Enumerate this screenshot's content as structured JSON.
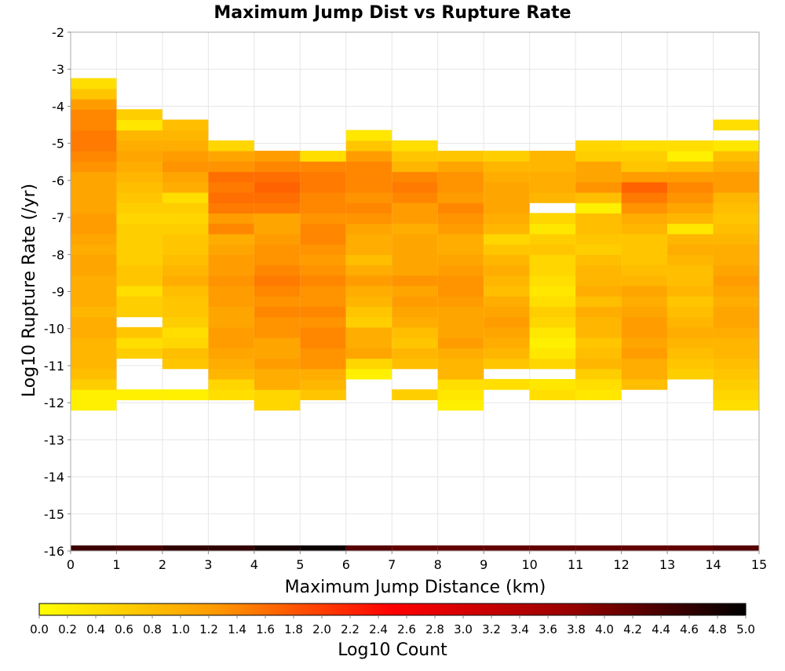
{
  "chart_data": {
    "type": "heatmap",
    "title": "Maximum Jump Dist vs Rupture Rate",
    "xlabel": "Maximum Jump Distance (km)",
    "ylabel": "Log10 Rupture Rate (/yr)",
    "xlim": [
      0,
      15
    ],
    "ylim": [
      -16,
      -2
    ],
    "x_ticks": [
      "0",
      "1",
      "2",
      "3",
      "4",
      "5",
      "6",
      "7",
      "8",
      "9",
      "10",
      "11",
      "12",
      "13",
      "14",
      "15"
    ],
    "y_ticks": [
      "-16",
      "-15",
      "-14",
      "-13",
      "-12",
      "-11",
      "-10",
      "-9",
      "-8",
      "-7",
      "-6",
      "-5",
      "-4",
      "-3",
      "-2"
    ],
    "grid": true,
    "x_bins": [
      0,
      1,
      2,
      3,
      4,
      5,
      6,
      7,
      8,
      9,
      10,
      11,
      12,
      13,
      14
    ],
    "x_bin_width": 1,
    "y_bin_width": 0.28,
    "y_bin_start": -12.2,
    "columns": [
      [
        0.2,
        0.2,
        0.6,
        0.8,
        0.9,
        0.9,
        0.9,
        1.0,
        1.0,
        0.9,
        1.0,
        1.0,
        1.0,
        1.1,
        1.1,
        1.0,
        1.1,
        1.2,
        1.2,
        1.1,
        1.1,
        1.1,
        1.1,
        1.3,
        1.4,
        1.5,
        1.5,
        1.4,
        1.4,
        1.2,
        0.7,
        0.4
      ],
      [
        null,
        0.2,
        null,
        null,
        null,
        0.6,
        0.4,
        0.7,
        null,
        0.6,
        0.6,
        0.4,
        0.7,
        0.7,
        0.6,
        0.6,
        0.6,
        0.6,
        0.5,
        0.6,
        0.7,
        0.8,
        0.9,
        1.0,
        1.1,
        1.0,
        0.9,
        0.3,
        0.6,
        null,
        null,
        null
      ],
      [
        null,
        0.2,
        null,
        null,
        0.7,
        0.8,
        0.5,
        0.4,
        0.6,
        0.7,
        0.7,
        0.8,
        1.0,
        0.9,
        0.8,
        0.7,
        0.7,
        0.6,
        0.5,
        0.6,
        0.4,
        1.0,
        1.1,
        1.3,
        1.2,
        1.0,
        0.9,
        0.8,
        null,
        null,
        null,
        null
      ],
      [
        null,
        0.4,
        0.5,
        0.9,
        1.0,
        1.1,
        1.2,
        1.2,
        1.1,
        1.1,
        1.2,
        1.2,
        1.3,
        1.2,
        1.2,
        1.1,
        1.0,
        1.4,
        1.2,
        1.5,
        1.6,
        1.5,
        1.6,
        1.3,
        1.1,
        0.5,
        null,
        null,
        null,
        null,
        null,
        null
      ],
      [
        0.5,
        0.5,
        1.0,
        1.0,
        1.2,
        1.1,
        1.1,
        1.3,
        1.3,
        1.4,
        1.3,
        1.4,
        1.5,
        1.4,
        1.3,
        1.3,
        1.2,
        1.1,
        1.1,
        1.5,
        1.6,
        1.7,
        1.6,
        1.4,
        1.2,
        null,
        null,
        null,
        null,
        null,
        null,
        null
      ],
      [
        null,
        0.7,
        0.9,
        1.0,
        1.3,
        1.3,
        1.4,
        1.4,
        1.3,
        1.4,
        1.3,
        1.3,
        1.4,
        1.3,
        1.2,
        1.3,
        1.4,
        1.4,
        1.3,
        1.4,
        1.4,
        1.5,
        1.5,
        1.4,
        0.4,
        null,
        null,
        null,
        null,
        null,
        null,
        null
      ],
      [
        null,
        null,
        null,
        0.2,
        0.5,
        1.1,
        1.0,
        1.0,
        0.6,
        0.7,
        0.9,
        1.0,
        1.2,
        1.0,
        0.8,
        1.0,
        1.0,
        1.1,
        1.3,
        1.4,
        1.3,
        1.4,
        1.4,
        1.4,
        1.2,
        0.7,
        0.3,
        null,
        null,
        null,
        null,
        null
      ],
      [
        null,
        0.6,
        null,
        null,
        0.8,
        0.9,
        0.7,
        0.8,
        1.0,
        1.1,
        1.2,
        1.1,
        1.3,
        1.1,
        1.1,
        1.1,
        1.1,
        1.0,
        1.2,
        1.2,
        1.4,
        1.5,
        1.4,
        0.9,
        0.7,
        0.4,
        null,
        null,
        null,
        null,
        null,
        null
      ],
      [
        0.2,
        0.3,
        0.4,
        0.9,
        0.9,
        1.0,
        1.2,
        1.1,
        1.1,
        1.1,
        1.2,
        1.3,
        1.3,
        1.2,
        1.1,
        1.0,
        1.0,
        1.2,
        1.3,
        1.4,
        1.2,
        1.3,
        1.3,
        1.1,
        0.7,
        null,
        null,
        null,
        null,
        null,
        null,
        null
      ],
      [
        null,
        null,
        0.4,
        null,
        0.7,
        0.9,
        1.0,
        1.1,
        1.2,
        1.1,
        1.0,
        0.8,
        0.9,
        1.0,
        0.9,
        0.7,
        0.5,
        0.9,
        1.0,
        1.1,
        1.1,
        1.1,
        1.0,
        0.9,
        0.6,
        null,
        null,
        null,
        null,
        null,
        null,
        null
      ],
      [
        null,
        0.4,
        0.3,
        null,
        0.5,
        0.3,
        0.2,
        0.3,
        0.5,
        0.6,
        0.4,
        0.3,
        0.4,
        0.5,
        0.5,
        0.7,
        0.6,
        0.3,
        0.5,
        null,
        0.9,
        1.0,
        1.0,
        0.9,
        0.9,
        null,
        null,
        null,
        null,
        null,
        null,
        null
      ],
      [
        null,
        0.3,
        0.4,
        0.6,
        0.9,
        0.8,
        0.7,
        0.9,
        0.9,
        1.0,
        0.8,
        1.0,
        0.9,
        0.9,
        0.8,
        0.6,
        0.7,
        0.8,
        0.8,
        0.2,
        0.8,
        1.3,
        1.1,
        1.1,
        0.6,
        0.5,
        null,
        null,
        null,
        null,
        null,
        null
      ],
      [
        null,
        null,
        0.8,
        1.0,
        1.0,
        1.2,
        1.1,
        1.2,
        1.2,
        1.1,
        1.0,
        1.1,
        0.9,
        0.8,
        0.7,
        0.7,
        0.7,
        0.9,
        1.0,
        1.3,
        1.5,
        1.7,
        1.2,
        0.7,
        0.6,
        0.4,
        null,
        null,
        null,
        null,
        null,
        null
      ],
      [
        null,
        null,
        null,
        0.6,
        0.7,
        0.8,
        0.9,
        1.0,
        0.9,
        0.8,
        0.7,
        0.9,
        0.8,
        0.8,
        0.9,
        1.0,
        0.9,
        0.3,
        0.9,
        1.1,
        1.3,
        1.4,
        1.2,
        0.8,
        0.2,
        0.4,
        null,
        null,
        null,
        null,
        null,
        null
      ],
      [
        0.4,
        0.5,
        0.6,
        0.7,
        0.8,
        0.9,
        0.9,
        1.0,
        1.1,
        1.1,
        1.0,
        1.1,
        1.2,
        1.1,
        1.0,
        1.0,
        0.9,
        0.8,
        0.7,
        0.8,
        0.9,
        1.2,
        1.2,
        1.0,
        0.8,
        0.3,
        null,
        0.4,
        null,
        null,
        null,
        null
      ]
    ],
    "baseline_row": {
      "y": -16,
      "values": [
        4.5,
        4.4,
        4.6,
        4.6,
        4.8,
        4.9,
        4.3,
        4.2,
        4.2,
        4.2,
        4.2,
        4.2,
        4.2,
        4.2,
        4.3
      ]
    },
    "colorbar": {
      "label": "Log10 Count",
      "min": 0.0,
      "max": 5.0,
      "ticks": [
        "0.0",
        "0.2",
        "0.4",
        "0.6",
        "0.8",
        "1.0",
        "1.2",
        "1.4",
        "1.6",
        "1.8",
        "2.0",
        "2.2",
        "2.4",
        "2.6",
        "2.8",
        "3.0",
        "3.2",
        "3.4",
        "3.6",
        "3.8",
        "4.0",
        "4.2",
        "4.4",
        "4.6",
        "4.8",
        "5.0"
      ],
      "colors": [
        "#ffff00",
        "#ff9900",
        "#ff0000",
        "#990000",
        "#000000"
      ]
    }
  }
}
